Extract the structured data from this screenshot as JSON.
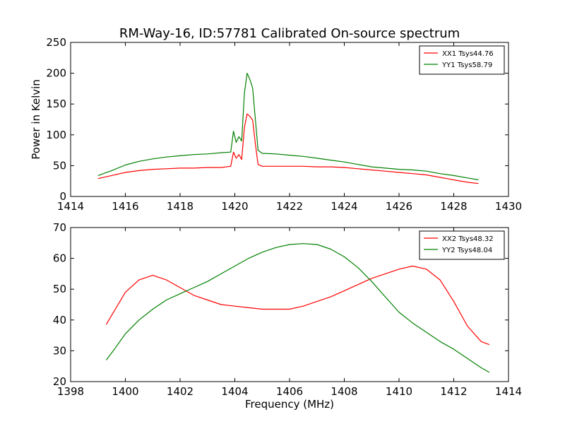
{
  "chart_data": [
    {
      "type": "line",
      "title": "RM-Way-16, ID:57781 Calibrated On-source spectrum",
      "xlabel": "",
      "ylabel": "Power in Kelvin",
      "xlim": [
        1414,
        1430
      ],
      "ylim": [
        0,
        250
      ],
      "xticks": [
        "1414",
        "1416",
        "1418",
        "1420",
        "1422",
        "1424",
        "1426",
        "1428",
        "1430"
      ],
      "yticks": [
        "0",
        "50",
        "100",
        "150",
        "200",
        "250"
      ],
      "legend": "top-right",
      "series": [
        {
          "name": "XX1 Tsys44.76",
          "color": "#ff0000",
          "x": [
            1415.0,
            1415.5,
            1416.0,
            1416.5,
            1417.0,
            1417.5,
            1418.0,
            1418.5,
            1419.0,
            1419.5,
            1419.85,
            1419.95,
            1420.05,
            1420.15,
            1420.25,
            1420.35,
            1420.45,
            1420.55,
            1420.65,
            1420.75,
            1420.85,
            1421.0,
            1421.5,
            1422.0,
            1422.5,
            1423.0,
            1423.5,
            1424.0,
            1424.5,
            1425.0,
            1425.5,
            1426.0,
            1426.5,
            1427.0,
            1427.5,
            1428.0,
            1428.5,
            1428.9
          ],
          "values": [
            29,
            34,
            39,
            42,
            44,
            45,
            46,
            46,
            47,
            47,
            49,
            72,
            62,
            68,
            60,
            112,
            134,
            130,
            124,
            85,
            52,
            49,
            49,
            49,
            49,
            48,
            48,
            47,
            45,
            43,
            41,
            39,
            37,
            35,
            31,
            27,
            23,
            21
          ]
        },
        {
          "name": "YY1 Tsys58.79",
          "color": "#008000",
          "x": [
            1415.0,
            1415.5,
            1416.0,
            1416.5,
            1417.0,
            1417.5,
            1418.0,
            1418.5,
            1419.0,
            1419.5,
            1419.85,
            1419.95,
            1420.05,
            1420.15,
            1420.25,
            1420.35,
            1420.45,
            1420.55,
            1420.65,
            1420.75,
            1420.85,
            1421.0,
            1421.5,
            1422.0,
            1422.5,
            1423.0,
            1423.5,
            1424.0,
            1424.5,
            1425.0,
            1425.5,
            1426.0,
            1426.5,
            1427.0,
            1427.5,
            1428.0,
            1428.5,
            1428.9
          ],
          "values": [
            34,
            42,
            51,
            57,
            61,
            64,
            66,
            68,
            69,
            71,
            72,
            106,
            88,
            97,
            90,
            168,
            200,
            190,
            176,
            125,
            75,
            70,
            69,
            67,
            65,
            62,
            59,
            56,
            52,
            48,
            46,
            44,
            43,
            41,
            37,
            34,
            30,
            27
          ]
        }
      ]
    },
    {
      "type": "line",
      "title": "",
      "xlabel": "Frequency (MHz)",
      "ylabel": "",
      "xlim": [
        1398,
        1414
      ],
      "ylim": [
        20,
        70
      ],
      "xticks": [
        "1398",
        "1400",
        "1402",
        "1404",
        "1406",
        "1408",
        "1410",
        "1412",
        "1414"
      ],
      "yticks": [
        "20",
        "30",
        "40",
        "50",
        "60",
        "70"
      ],
      "legend": "top-right",
      "series": [
        {
          "name": "XX2 Tsys48.32",
          "color": "#ff0000",
          "x": [
            1399.3,
            1399.6,
            1400.0,
            1400.5,
            1401.0,
            1401.5,
            1402.0,
            1402.5,
            1403.0,
            1403.5,
            1404.0,
            1404.5,
            1405.0,
            1405.5,
            1406.0,
            1406.5,
            1407.0,
            1407.5,
            1408.0,
            1408.5,
            1409.0,
            1409.5,
            1410.0,
            1410.5,
            1411.0,
            1411.5,
            1412.0,
            1412.5,
            1413.0,
            1413.3
          ],
          "values": [
            38.5,
            43,
            49,
            53,
            54.5,
            53,
            50.5,
            48,
            46.5,
            45,
            44.5,
            44,
            43.5,
            43.5,
            43.5,
            44.5,
            46,
            47.5,
            49.5,
            51.5,
            53.5,
            55,
            56.5,
            57.5,
            56.5,
            53,
            46,
            38,
            33,
            32
          ]
        },
        {
          "name": "YY2 Tsys48.04",
          "color": "#008000",
          "x": [
            1399.3,
            1399.6,
            1400.0,
            1400.5,
            1401.0,
            1401.5,
            1402.0,
            1402.5,
            1403.0,
            1403.5,
            1404.0,
            1404.5,
            1405.0,
            1405.5,
            1406.0,
            1406.5,
            1407.0,
            1407.5,
            1408.0,
            1408.5,
            1409.0,
            1409.5,
            1410.0,
            1410.5,
            1411.0,
            1411.5,
            1412.0,
            1412.5,
            1413.0,
            1413.3
          ],
          "values": [
            27,
            30.5,
            35.5,
            40,
            43.5,
            46.5,
            48.5,
            50.5,
            52.5,
            55,
            57.5,
            60,
            62,
            63.5,
            64.5,
            64.8,
            64.5,
            63,
            60.5,
            57,
            52.5,
            47.5,
            42.5,
            39,
            36,
            33,
            30.5,
            27.5,
            24.5,
            23
          ]
        }
      ]
    }
  ]
}
